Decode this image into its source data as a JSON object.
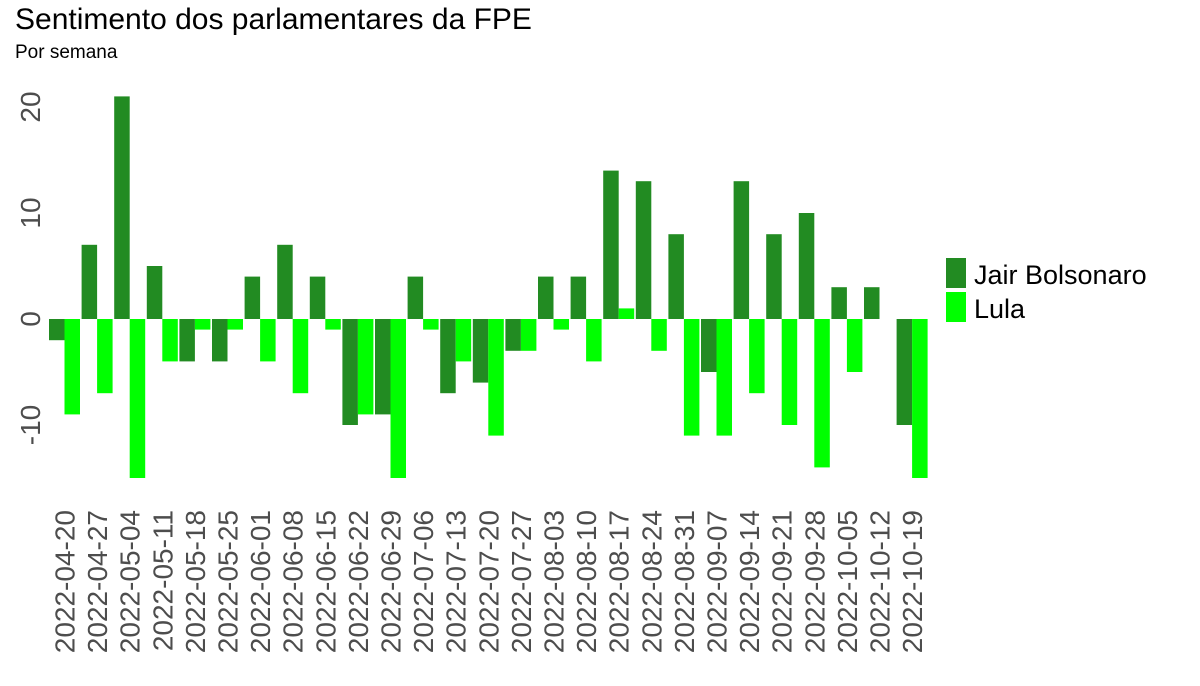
{
  "chart_data": {
    "type": "bar",
    "title": "Sentimento dos parlamentares da FPE",
    "subtitle": "Por semana",
    "xlabel": "",
    "ylabel": "",
    "ylim": [
      -15,
      22
    ],
    "yticks": [
      -10,
      0,
      10,
      20
    ],
    "grid": false,
    "legend_position": "right",
    "categories": [
      "2022-04-20",
      "2022-04-27",
      "2022-05-04",
      "2022-05-11",
      "2022-05-18",
      "2022-05-25",
      "2022-06-01",
      "2022-06-08",
      "2022-06-15",
      "2022-06-22",
      "2022-06-29",
      "2022-07-06",
      "2022-07-13",
      "2022-07-20",
      "2022-07-27",
      "2022-08-03",
      "2022-08-10",
      "2022-08-17",
      "2022-08-24",
      "2022-08-31",
      "2022-09-07",
      "2022-09-14",
      "2022-09-21",
      "2022-09-28",
      "2022-10-05",
      "2022-10-12",
      "2022-10-19"
    ],
    "series": [
      {
        "name": "Jair Bolsonaro",
        "color": "#228b22",
        "values": [
          -2,
          7,
          21,
          5,
          -4,
          -4,
          4,
          7,
          4,
          -10,
          -9,
          4,
          -7,
          -6,
          -3,
          4,
          4,
          14,
          13,
          8,
          -5,
          13,
          8,
          10,
          3,
          3,
          -10
        ]
      },
      {
        "name": "Lula",
        "color": "#00ff00",
        "values": [
          -9,
          -7,
          -15,
          -4,
          -1,
          -1,
          -4,
          -7,
          -1,
          -9,
          -15,
          -1,
          -4,
          -11,
          -3,
          -1,
          -4,
          1,
          -3,
          -11,
          -11,
          -7,
          -10,
          -14,
          -5,
          0,
          -15
        ]
      }
    ]
  }
}
